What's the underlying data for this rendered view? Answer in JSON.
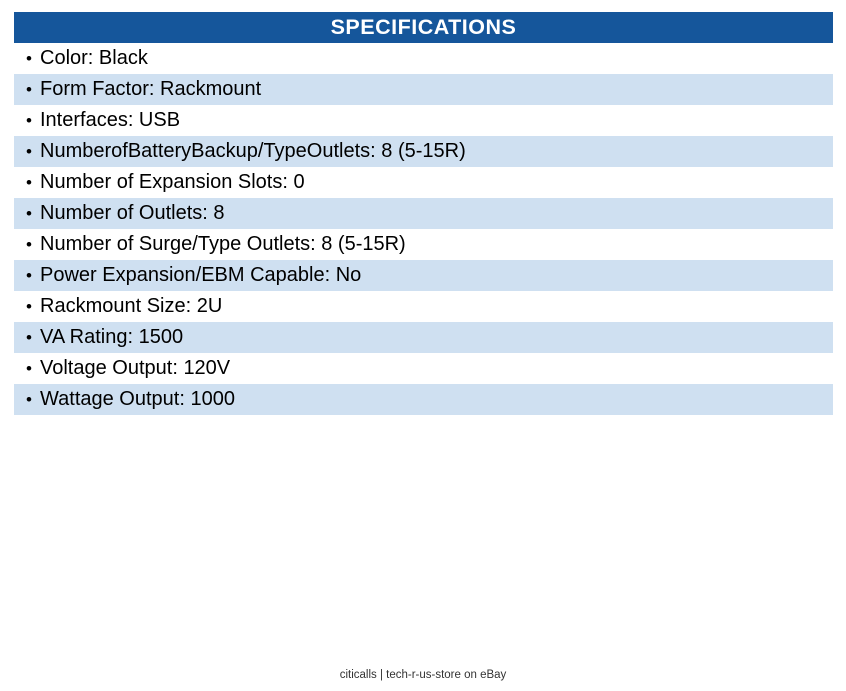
{
  "header": {
    "title": "SPECIFICATIONS"
  },
  "specs": {
    "bullet": "•",
    "items": [
      "Color: Black",
      "Form Factor: Rackmount",
      "Interfaces: USB",
      "NumberofBatteryBackup/TypeOutlets: 8 (5-15R)",
      "Number of Expansion Slots: 0",
      "Number of Outlets: 8",
      "Number of Surge/Type Outlets: 8 (5-15R)",
      "Power Expansion/EBM Capable: No",
      "Rackmount Size: 2U",
      "VA Rating: 1500",
      "Voltage Output: 120V",
      "Wattage Output: 1000"
    ]
  },
  "footer": {
    "credit": "citicalls | tech-r-us-store on eBay"
  },
  "colors": {
    "header_bg": "#15569B",
    "header_text": "#FFFFFF",
    "row_alt_bg": "#CFE0F1",
    "row_bg": "#FFFFFF",
    "text": "#000000",
    "footer_text": "#333333"
  }
}
